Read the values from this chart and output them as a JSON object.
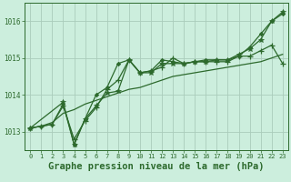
{
  "background_color": "#cceedd",
  "grid_color": "#aaccbb",
  "line_color": "#2d6a2d",
  "xlabel": "Graphe pression niveau de la mer (hPa)",
  "xlabel_fontsize": 7.5,
  "ylim": [
    1012.5,
    1016.5
  ],
  "xlim": [
    -0.5,
    23.5
  ],
  "yticks": [
    1013,
    1014,
    1015,
    1016
  ],
  "xticks": [
    0,
    1,
    2,
    3,
    4,
    5,
    6,
    7,
    8,
    9,
    10,
    11,
    12,
    13,
    14,
    15,
    16,
    17,
    18,
    19,
    20,
    21,
    22,
    23
  ],
  "series": [
    {
      "x": [
        0,
        1,
        2,
        3,
        4,
        5,
        6,
        7,
        8,
        9,
        10,
        11,
        12,
        13,
        14,
        15,
        16,
        17,
        18,
        19,
        20,
        21,
        22,
        23
      ],
      "y": [
        1013.1,
        1013.15,
        1013.25,
        1013.5,
        1013.6,
        1013.75,
        1013.85,
        1013.95,
        1014.05,
        1014.15,
        1014.2,
        1014.3,
        1014.4,
        1014.5,
        1014.55,
        1014.6,
        1014.65,
        1014.7,
        1014.75,
        1014.8,
        1014.85,
        1014.9,
        1015.0,
        1015.1
      ],
      "marker": "None",
      "lw": 0.9
    },
    {
      "x": [
        0,
        1,
        2,
        3,
        4,
        5,
        6,
        7,
        8,
        9,
        10,
        11,
        12,
        13,
        14,
        15,
        16,
        17,
        18,
        19,
        20,
        21,
        22,
        23
      ],
      "y": [
        1013.1,
        1013.15,
        1013.2,
        1013.7,
        1012.8,
        1013.3,
        1013.65,
        1014.15,
        1014.4,
        1014.95,
        1014.6,
        1014.65,
        1014.75,
        1015.0,
        1014.85,
        1014.9,
        1014.9,
        1014.9,
        1014.9,
        1015.05,
        1015.05,
        1015.2,
        1015.35,
        1014.85
      ],
      "marker": "+",
      "lw": 0.9
    },
    {
      "x": [
        0,
        1,
        2,
        3,
        4,
        5,
        6,
        7,
        8,
        9,
        10,
        11,
        12,
        13,
        14,
        15,
        16,
        17,
        18,
        19,
        20,
        21,
        22,
        23
      ],
      "y": [
        1013.1,
        1013.15,
        1013.2,
        1013.75,
        1012.65,
        1013.35,
        1014.0,
        1014.2,
        1014.85,
        1014.95,
        1014.6,
        1014.65,
        1014.95,
        1014.9,
        1014.85,
        1014.9,
        1014.95,
        1014.95,
        1014.95,
        1015.05,
        1015.3,
        1015.65,
        1016.0,
        1016.2
      ],
      "marker": "D",
      "lw": 0.9
    },
    {
      "x": [
        0,
        3,
        4,
        5,
        6,
        7,
        8,
        9,
        10,
        11,
        12,
        13,
        14,
        15,
        16,
        17,
        18,
        19,
        20,
        21,
        22,
        23
      ],
      "y": [
        1013.1,
        1013.8,
        1012.65,
        1013.35,
        1013.7,
        1014.05,
        1014.1,
        1014.95,
        1014.6,
        1014.6,
        1014.85,
        1014.85,
        1014.85,
        1014.9,
        1014.9,
        1014.95,
        1014.95,
        1015.1,
        1015.25,
        1015.5,
        1016.0,
        1016.25
      ],
      "marker": "*",
      "lw": 0.9
    }
  ]
}
